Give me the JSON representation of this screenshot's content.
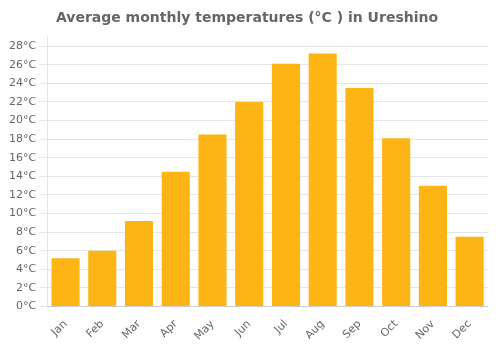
{
  "chart_data": {
    "type": "bar",
    "title": "Average monthly temperatures (°C ) in Ureshino",
    "categories": [
      "Jan",
      "Feb",
      "Mar",
      "Apr",
      "May",
      "Jun",
      "Jul",
      "Aug",
      "Sep",
      "Oct",
      "Nov",
      "Dec"
    ],
    "values": [
      5.2,
      6.0,
      9.2,
      14.5,
      18.5,
      22.0,
      26.1,
      27.2,
      23.5,
      18.1,
      13.0,
      7.5
    ],
    "color": "#FDB515",
    "ylim": [
      0,
      29
    ],
    "yticks": [
      {
        "value": 0,
        "label": "0°C"
      },
      {
        "value": 2,
        "label": "2°C"
      },
      {
        "value": 4,
        "label": "4°C"
      },
      {
        "value": 6,
        "label": "6°C"
      },
      {
        "value": 8,
        "label": "8°C"
      },
      {
        "value": 10,
        "label": "10°C"
      },
      {
        "value": 12,
        "label": "12°C"
      },
      {
        "value": 14,
        "label": "14°C"
      },
      {
        "value": 16,
        "label": "16°C"
      },
      {
        "value": 18,
        "label": "18°C"
      },
      {
        "value": 20,
        "label": "20°C"
      },
      {
        "value": 22,
        "label": "22°C"
      },
      {
        "value": 24,
        "label": "24°C"
      },
      {
        "value": 26,
        "label": "26°C"
      },
      {
        "value": 28,
        "label": "28°C"
      }
    ],
    "grid": true
  }
}
